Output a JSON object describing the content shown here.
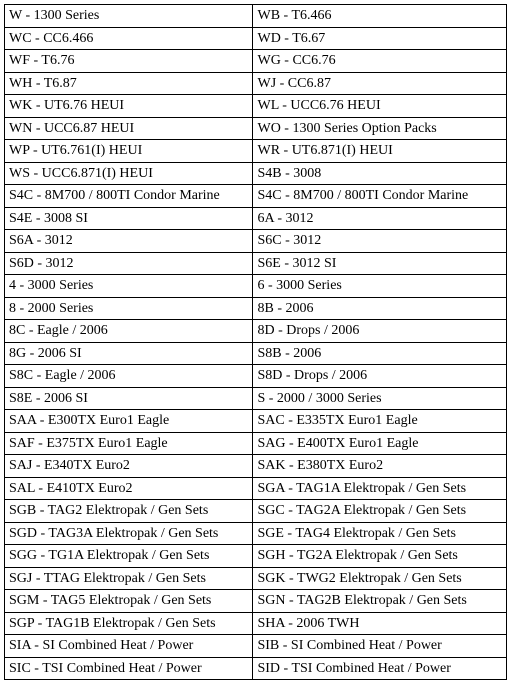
{
  "table": {
    "columns": [
      "left",
      "right"
    ],
    "column_widths_pct": [
      49.5,
      50.5
    ],
    "border_color": "#000000",
    "text_color": "#000000",
    "background_color": "#ffffff",
    "font_family": "Times New Roman",
    "font_size_pt": 11,
    "rows": [
      [
        "W - 1300 Series",
        "WB - T6.466"
      ],
      [
        "WC - CC6.466",
        "WD - T6.67"
      ],
      [
        "WF - T6.76",
        "WG - CC6.76"
      ],
      [
        "WH - T6.87",
        "WJ - CC6.87"
      ],
      [
        "WK - UT6.76 HEUI",
        "WL - UCC6.76 HEUI"
      ],
      [
        "WN - UCC6.87 HEUI",
        "WO - 1300 Series Option Packs"
      ],
      [
        "WP - UT6.761(I) HEUI",
        "WR - UT6.871(I) HEUI"
      ],
      [
        "WS - UCC6.871(I) HEUI",
        "S4B - 3008"
      ],
      [
        "S4C - 8M700 / 800TI Condor Marine",
        "S4C - 8M700 / 800TI Condor Marine"
      ],
      [
        "S4E - 3008 SI",
        "6A - 3012"
      ],
      [
        "S6A - 3012",
        "S6C - 3012"
      ],
      [
        "S6D - 3012",
        "S6E - 3012 SI"
      ],
      [
        "4 - 3000 Series",
        "6 - 3000 Series"
      ],
      [
        "8 - 2000 Series",
        "8B - 2006"
      ],
      [
        "8C - Eagle / 2006",
        "8D - Drops / 2006"
      ],
      [
        "8G - 2006 SI",
        "S8B - 2006"
      ],
      [
        "S8C - Eagle / 2006",
        "S8D - Drops / 2006"
      ],
      [
        "S8E - 2006 SI",
        "S - 2000 / 3000 Series"
      ],
      [
        "SAA - E300TX Euro1 Eagle",
        "SAC - E335TX Euro1 Eagle"
      ],
      [
        "SAF - E375TX Euro1 Eagle",
        "SAG - E400TX Euro1 Eagle"
      ],
      [
        "SAJ - E340TX Euro2",
        "SAK - E380TX Euro2"
      ],
      [
        "SAL - E410TX Euro2",
        "SGA - TAG1A Elektropak / Gen Sets"
      ],
      [
        "SGB - TAG2 Elektropak / Gen Sets",
        "SGC - TAG2A Elektropak / Gen Sets"
      ],
      [
        "SGD - TAG3A Elektropak / Gen Sets",
        "SGE - TAG4 Elektropak / Gen Sets"
      ],
      [
        "SGG - TG1A Elektropak / Gen Sets",
        "SGH - TG2A Elektropak / Gen Sets"
      ],
      [
        "SGJ - TTAG Elektropak / Gen Sets",
        "SGK - TWG2 Elektropak / Gen Sets"
      ],
      [
        "SGM - TAG5 Elektropak / Gen Sets",
        "SGN - TAG2B Elektropak / Gen Sets"
      ],
      [
        "SGP - TAG1B Elektropak / Gen Sets",
        "SHA - 2006 TWH"
      ],
      [
        "SIA - SI Combined Heat / Power",
        "SIB - SI Combined Heat / Power"
      ],
      [
        "SIC - TSI Combined Heat / Power",
        "SID - TSI Combined Heat / Power"
      ]
    ]
  }
}
